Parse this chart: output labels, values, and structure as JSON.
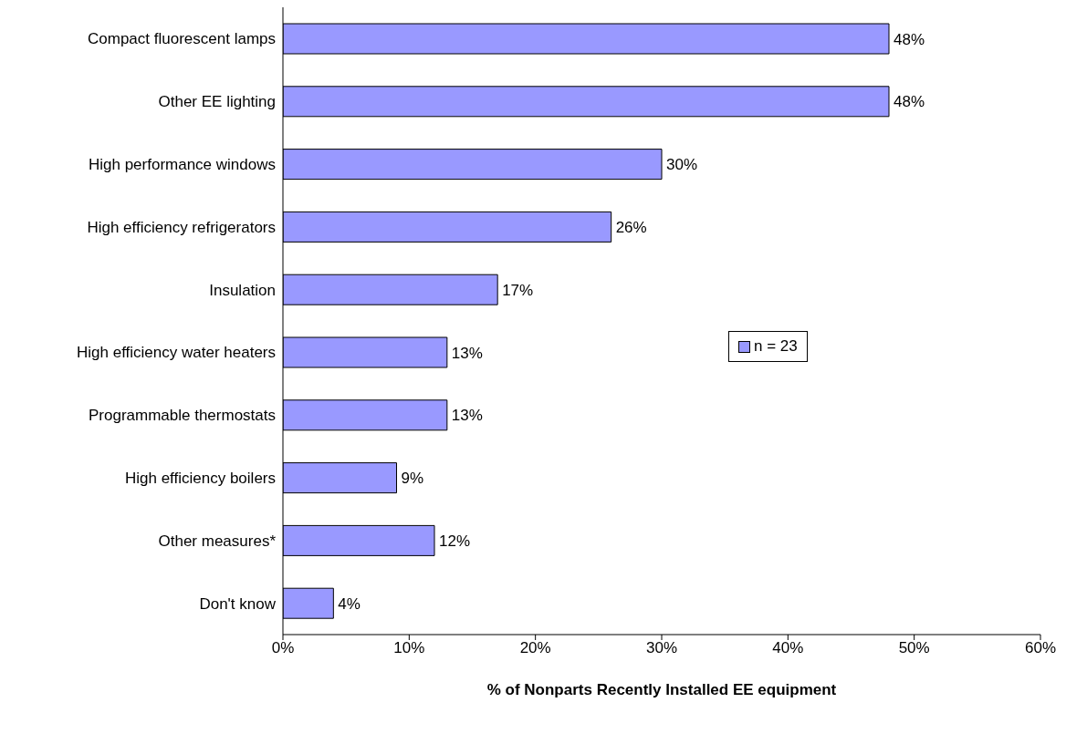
{
  "chart_data": {
    "type": "bar",
    "orientation": "horizontal",
    "xlabel": "% of Nonparts Recently Installed EE equipment",
    "categories": [
      "Compact fluorescent lamps",
      "Other EE lighting",
      "High performance windows",
      "High efficiency refrigerators",
      "Insulation",
      "High efficiency water heaters",
      "Programmable thermostats",
      "High efficiency boilers",
      "Other measures*",
      "Don't know"
    ],
    "series": [
      {
        "name": "n = 23",
        "color": "#9999ff",
        "values": [
          48,
          48,
          30,
          26,
          17,
          13,
          13,
          9,
          12,
          4
        ],
        "value_labels": [
          "48%",
          "48%",
          "30%",
          "26%",
          "17%",
          "13%",
          "13%",
          "9%",
          "12%",
          "4%"
        ]
      }
    ],
    "xlim": [
      0,
      60
    ],
    "xticks": [
      {
        "value": 0,
        "label": "0%"
      },
      {
        "value": 10,
        "label": "10%"
      },
      {
        "value": 20,
        "label": "20%"
      },
      {
        "value": 30,
        "label": "30%"
      },
      {
        "value": 40,
        "label": "40%"
      },
      {
        "value": 50,
        "label": "50%"
      },
      {
        "value": 60,
        "label": "60%"
      }
    ],
    "grid": false,
    "legend": "right"
  }
}
